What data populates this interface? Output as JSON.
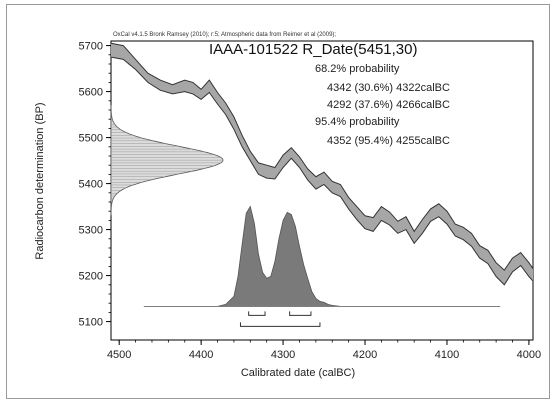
{
  "chart_data": {
    "type": "line",
    "title": "IAAA-101522 R_Date(5451,30)",
    "credit": "OxCal v4.1.5 Bronk Ramsey (2010); r:5; Atmospheric data from Reimer et al (2009);",
    "xlabel": "Calibrated date (calBC)",
    "ylabel": "Radiocarbon determination (BP)",
    "xlim": [
      4510,
      3995
    ],
    "ylim": [
      5060,
      5710
    ],
    "x_ticks": [
      {
        "value": 4500,
        "label": "4500"
      },
      {
        "value": 4400,
        "label": "4400"
      },
      {
        "value": 4300,
        "label": "4300"
      },
      {
        "value": 4200,
        "label": "4200"
      },
      {
        "value": 4100,
        "label": "4100"
      },
      {
        "value": 4000,
        "label": "4000"
      }
    ],
    "y_ticks": [
      {
        "value": 5700,
        "label": "5700"
      },
      {
        "value": 5600,
        "label": "5600"
      },
      {
        "value": 5500,
        "label": "5500"
      },
      {
        "value": 5400,
        "label": "5400"
      },
      {
        "value": 5300,
        "label": "5300"
      },
      {
        "value": 5200,
        "label": "5200"
      },
      {
        "value": 5100,
        "label": "5100"
      }
    ],
    "annotations": [
      "68.2% probability",
      "4342 (30.6%) 4322calBC",
      "4292 (37.6%) 4266calBC",
      "95.4% probability",
      "4352 (95.4%) 4255calBC"
    ],
    "calibration_curve": {
      "x": [
        4510,
        4495,
        4480,
        4465,
        4450,
        4435,
        4420,
        4410,
        4400,
        4390,
        4380,
        4370,
        4360,
        4350,
        4340,
        4330,
        4320,
        4310,
        4300,
        4290,
        4280,
        4270,
        4260,
        4250,
        4240,
        4230,
        4220,
        4210,
        4200,
        4190,
        4180,
        4170,
        4160,
        4150,
        4140,
        4130,
        4120,
        4110,
        4100,
        4090,
        4080,
        4070,
        4060,
        4050,
        4040,
        4030,
        4020,
        4010,
        4000,
        3995
      ],
      "upper": [
        5705,
        5700,
        5670,
        5640,
        5625,
        5615,
        5625,
        5620,
        5605,
        5625,
        5598,
        5575,
        5545,
        5505,
        5470,
        5445,
        5440,
        5435,
        5462,
        5478,
        5458,
        5432,
        5415,
        5425,
        5405,
        5398,
        5370,
        5350,
        5330,
        5326,
        5350,
        5338,
        5318,
        5328,
        5296,
        5322,
        5345,
        5356,
        5340,
        5312,
        5305,
        5292,
        5265,
        5255,
        5228,
        5212,
        5238,
        5250,
        5228,
        5215
      ],
      "lower": [
        5675,
        5670,
        5648,
        5620,
        5603,
        5595,
        5600,
        5595,
        5583,
        5598,
        5573,
        5550,
        5518,
        5480,
        5450,
        5420,
        5412,
        5410,
        5435,
        5455,
        5435,
        5408,
        5388,
        5398,
        5380,
        5372,
        5345,
        5322,
        5302,
        5296,
        5320,
        5310,
        5292,
        5300,
        5270,
        5292,
        5318,
        5328,
        5312,
        5286,
        5278,
        5264,
        5238,
        5226,
        5198,
        5180,
        5208,
        5222,
        5198,
        5188
      ]
    },
    "radiocarbon_date": {
      "mean": 5451,
      "sigma": 30
    },
    "calibrated_distribution": {
      "x": [
        4470,
        4380,
        4370,
        4360,
        4355,
        4350,
        4345,
        4340,
        4335,
        4330,
        4325,
        4320,
        4315,
        4310,
        4305,
        4300,
        4295,
        4290,
        4285,
        4280,
        4275,
        4270,
        4265,
        4260,
        4255,
        4250,
        4245,
        4240,
        4230,
        4035
      ],
      "density": [
        0,
        0,
        0.02,
        0.1,
        0.3,
        0.62,
        0.93,
        1.0,
        0.83,
        0.52,
        0.34,
        0.28,
        0.3,
        0.45,
        0.68,
        0.86,
        0.94,
        0.92,
        0.8,
        0.6,
        0.42,
        0.28,
        0.15,
        0.08,
        0.05,
        0.04,
        0.02,
        0.01,
        0,
        0
      ]
    },
    "ranges_68": [
      [
        4342,
        4322
      ],
      [
        4292,
        4266
      ]
    ],
    "ranges_95": [
      [
        4352,
        4255
      ]
    ],
    "grid": false
  }
}
